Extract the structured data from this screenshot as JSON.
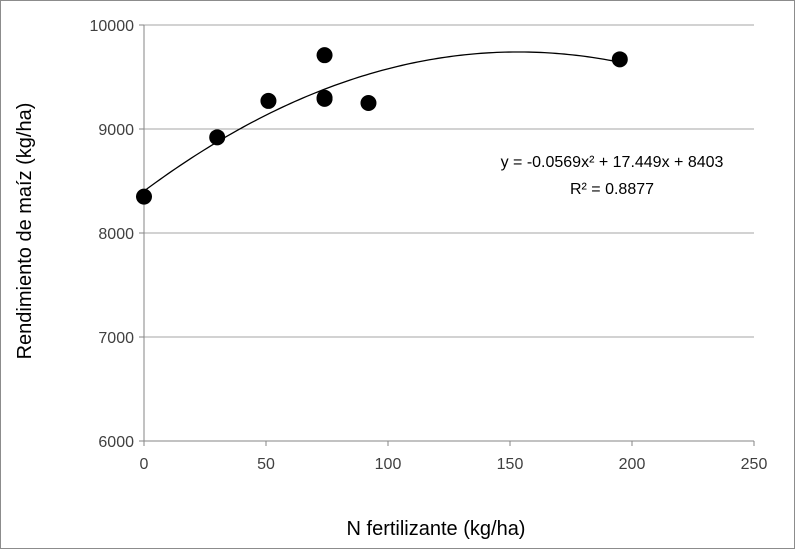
{
  "chart_data": {
    "type": "scatter",
    "xlabel": "N fertilizante (kg/ha)",
    "ylabel": "Rendimiento de maíz (kg/ha)",
    "xlim": [
      0,
      250
    ],
    "ylim": [
      6000,
      10000
    ],
    "xticks": [
      0,
      50,
      100,
      150,
      200,
      250
    ],
    "yticks": [
      6000,
      7000,
      8000,
      9000,
      10000
    ],
    "xtick_labels": [
      "0",
      "50",
      "100",
      "150",
      "200",
      "250"
    ],
    "ytick_labels": [
      "6000",
      "7000",
      "8000",
      "9000",
      "10000"
    ],
    "grid": "horizontal",
    "points": [
      {
        "x": 0,
        "y": 8350
      },
      {
        "x": 30,
        "y": 8920
      },
      {
        "x": 51,
        "y": 9270
      },
      {
        "x": 74,
        "y": 9710
      },
      {
        "x": 74,
        "y": 9300
      },
      {
        "x": 74,
        "y": 9290
      },
      {
        "x": 92,
        "y": 9250
      },
      {
        "x": 195,
        "y": 9670
      }
    ],
    "trendline": {
      "type": "polynomial",
      "a": -0.0569,
      "b": 17.449,
      "c": 8403,
      "x_range": [
        0,
        195
      ],
      "equation": "y = -0.0569x² + 17.449x + 8403",
      "r_squared": "R² = 0.8877"
    },
    "colors": {
      "marker": "#000000",
      "trendline": "#000000",
      "grid": "#a6a6a6",
      "axis": "#868686"
    }
  }
}
